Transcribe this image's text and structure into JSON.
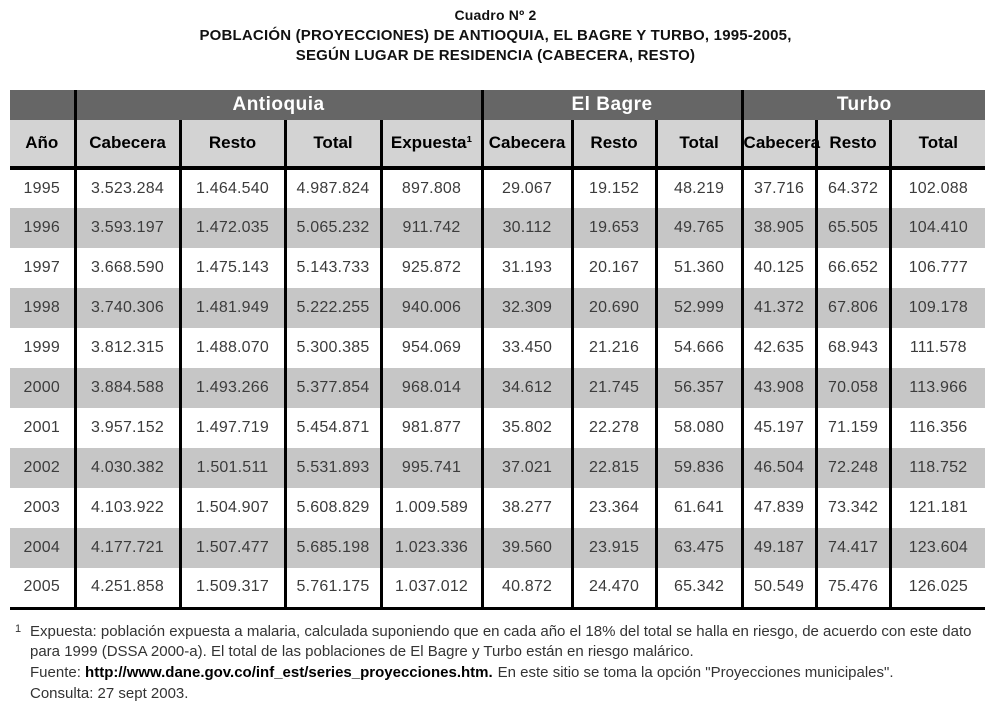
{
  "colors": {
    "group-band": "#666666",
    "header-bg": "#d3d3d3",
    "stripe-bg": "#c6c6c6",
    "line": "#000000"
  },
  "title": {
    "line1": "Cuadro Nº 2",
    "line2": "POBLACIÓN (PROYECCIONES) DE ANTIOQUIA, EL BAGRE Y TURBO, 1995-2005,",
    "line3": "SEGÚN LUGAR DE RESIDENCIA (CABECERA, RESTO)"
  },
  "table": {
    "groups": [
      {
        "label": "Antioquia",
        "colspan": 4
      },
      {
        "label": "El Bagre",
        "colspan": 3
      },
      {
        "label": "Turbo",
        "colspan": 3
      }
    ],
    "columns": [
      "Año",
      "Cabecera",
      "Resto",
      "Total",
      "Expuesta¹",
      "Cabecera",
      "Resto",
      "Total",
      "Cabecera",
      "Resto",
      "Total"
    ],
    "rows": [
      [
        "1995",
        "3.523.284",
        "1.464.540",
        "4.987.824",
        "897.808",
        "29.067",
        "19.152",
        "48.219",
        "37.716",
        "64.372",
        "102.088"
      ],
      [
        "1996",
        "3.593.197",
        "1.472.035",
        "5.065.232",
        "911.742",
        "30.112",
        "19.653",
        "49.765",
        "38.905",
        "65.505",
        "104.410"
      ],
      [
        "1997",
        "3.668.590",
        "1.475.143",
        "5.143.733",
        "925.872",
        "31.193",
        "20.167",
        "51.360",
        "40.125",
        "66.652",
        "106.777"
      ],
      [
        "1998",
        "3.740.306",
        "1.481.949",
        "5.222.255",
        "940.006",
        "32.309",
        "20.690",
        "52.999",
        "41.372",
        "67.806",
        "109.178"
      ],
      [
        "1999",
        "3.812.315",
        "1.488.070",
        "5.300.385",
        "954.069",
        "33.450",
        "21.216",
        "54.666",
        "42.635",
        "68.943",
        "111.578"
      ],
      [
        "2000",
        "3.884.588",
        "1.493.266",
        "5.377.854",
        "968.014",
        "34.612",
        "21.745",
        "56.357",
        "43.908",
        "70.058",
        "113.966"
      ],
      [
        "2001",
        "3.957.152",
        "1.497.719",
        "5.454.871",
        "981.877",
        "35.802",
        "22.278",
        "58.080",
        "45.197",
        "71.159",
        "116.356"
      ],
      [
        "2002",
        "4.030.382",
        "1.501.511",
        "5.531.893",
        "995.741",
        "37.021",
        "22.815",
        "59.836",
        "46.504",
        "72.248",
        "118.752"
      ],
      [
        "2003",
        "4.103.922",
        "1.504.907",
        "5.608.829",
        "1.009.589",
        "38.277",
        "23.364",
        "61.641",
        "47.839",
        "73.342",
        "121.181"
      ],
      [
        "2004",
        "4.177.721",
        "1.507.477",
        "5.685.198",
        "1.023.336",
        "39.560",
        "23.915",
        "63.475",
        "49.187",
        "74.417",
        "123.604"
      ],
      [
        "2005",
        "4.251.858",
        "1.509.317",
        "5.761.175",
        "1.037.012",
        "40.872",
        "24.470",
        "65.342",
        "50.549",
        "75.476",
        "126.025"
      ]
    ]
  },
  "footnotes": {
    "marker": "1",
    "note": "Expuesta: población expuesta a malaria, calculada suponiendo que en cada año el 18% del total se halla en riesgo, de acuerdo con este dato para 1999 (DSSA 2000-a). El total de las poblaciones de El Bagre y Turbo están en riesgo malárico.",
    "fuente_label": "Fuente: ",
    "fuente_url": "http://www.dane.gov.co/inf_est/series_proyecciones.htm.",
    "fuente_rest": "En este sitio se toma la opción \"Proyecciones municipales\".",
    "consulta": "Consulta: 27 sept 2003."
  }
}
